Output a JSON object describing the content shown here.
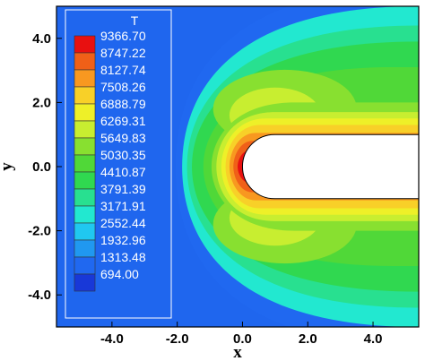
{
  "chart_data": {
    "type": "heatmap",
    "title": "",
    "xlabel": "x",
    "ylabel": "y",
    "xlim": [
      -5.7,
      5.4
    ],
    "ylim": [
      -5.0,
      5.0
    ],
    "x_ticks": [
      "-4.0",
      "-2.0",
      "0.0",
      "2.0",
      "4.0"
    ],
    "x_tick_values": [
      -4,
      -2,
      0,
      2,
      4
    ],
    "y_ticks": [
      "4.0",
      "2.0",
      "0.0",
      "-2.0",
      "-4.0"
    ],
    "y_tick_values": [
      4,
      2,
      0,
      -2,
      -4
    ],
    "colorbar": {
      "title": "T",
      "levels": [
        "9366.70",
        "8747.22",
        "8127.74",
        "7508.26",
        "6888.79",
        "6269.31",
        "5649.83",
        "5030.35",
        "4410.87",
        "3791.39",
        "3171.91",
        "2552.44",
        "1932.96",
        "1313.48",
        "694.00"
      ],
      "colors": [
        "#e81010",
        "#f06018",
        "#f89820",
        "#f8d028",
        "#eef028",
        "#c8ee30",
        "#88e030",
        "#50d838",
        "#30d850",
        "#28e090",
        "#22e8d0",
        "#20c8f0",
        "#2098f0",
        "#2068f0",
        "#1838d8"
      ],
      "placement": "left inside plot"
    },
    "background_color": "#1f66ee",
    "body": {
      "description_shape": "blunt slab with rounded nose",
      "nose_x": 0.0,
      "half_height": 1.0,
      "extends_to_x": 5.4
    }
  }
}
